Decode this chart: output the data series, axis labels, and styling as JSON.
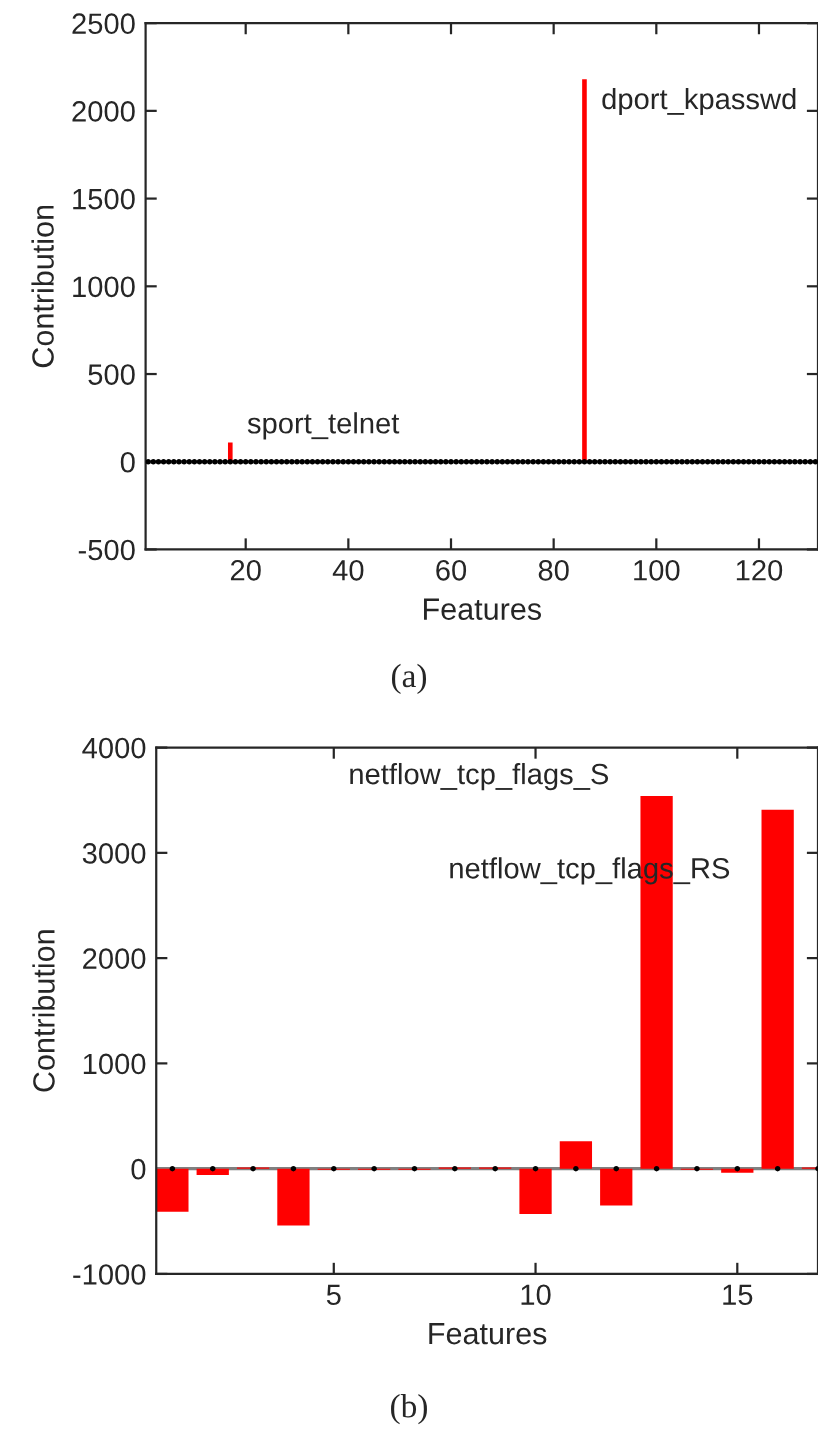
{
  "chart_data": [
    {
      "type": "bar",
      "xlabel": "Features",
      "ylabel": "Contribution",
      "x": [
        1,
        2,
        3,
        4,
        5,
        6,
        7,
        8,
        9,
        10,
        11,
        12,
        13,
        14,
        15,
        16,
        17,
        18,
        19,
        20,
        21,
        22,
        23,
        24,
        25,
        26,
        27,
        28,
        29,
        30,
        31,
        32,
        33,
        34,
        35,
        36,
        37,
        38,
        39,
        40,
        41,
        42,
        43,
        44,
        45,
        46,
        47,
        48,
        49,
        50,
        51,
        52,
        53,
        54,
        55,
        56,
        57,
        58,
        59,
        60,
        61,
        62,
        63,
        64,
        65,
        66,
        67,
        68,
        69,
        70,
        71,
        72,
        73,
        74,
        75,
        76,
        77,
        78,
        79,
        80,
        81,
        82,
        83,
        84,
        85,
        86,
        87,
        88,
        89,
        90,
        91,
        92,
        93,
        94,
        95,
        96,
        97,
        98,
        99,
        100,
        101,
        102,
        103,
        104,
        105,
        106,
        107,
        108,
        109,
        110,
        111,
        112,
        113,
        114,
        115,
        116,
        117,
        118,
        119,
        120,
        121,
        122,
        123,
        124,
        125,
        126,
        127,
        128,
        129,
        130,
        131
      ],
      "series": [
        {
          "color": "#ff0000",
          "values": [
            0,
            0,
            0,
            0,
            0,
            0,
            0,
            0,
            0,
            0,
            0,
            0,
            0,
            0,
            0,
            0,
            110,
            0,
            0,
            0,
            0,
            0,
            0,
            0,
            0,
            0,
            0,
            0,
            0,
            0,
            0,
            0,
            0,
            0,
            0,
            0,
            0,
            0,
            0,
            0,
            0,
            0,
            0,
            0,
            0,
            0,
            0,
            0,
            0,
            0,
            0,
            0,
            0,
            0,
            0,
            0,
            0,
            0,
            0,
            0,
            0,
            0,
            0,
            0,
            0,
            0,
            0,
            0,
            0,
            0,
            0,
            0,
            0,
            0,
            0,
            0,
            0,
            0,
            0,
            0,
            0,
            0,
            0,
            0,
            0,
            2180,
            0,
            0,
            0,
            0,
            0,
            0,
            0,
            0,
            0,
            0,
            0,
            0,
            0,
            0,
            0,
            0,
            0,
            0,
            0,
            0,
            0,
            0,
            0,
            0,
            0,
            0,
            0,
            0,
            0,
            0,
            0,
            0,
            0,
            0,
            0,
            0,
            0,
            0,
            0,
            0,
            0,
            0,
            0,
            0,
            0
          ]
        },
        {
          "type": "scatter",
          "color": "#000000",
          "marker": "circle",
          "values": [
            0,
            0,
            0,
            0,
            0,
            0,
            0,
            0,
            0,
            0,
            0,
            0,
            0,
            0,
            0,
            0,
            0,
            0,
            0,
            0,
            0,
            0,
            0,
            0,
            0,
            0,
            0,
            0,
            0,
            0,
            0,
            0,
            0,
            0,
            0,
            0,
            0,
            0,
            0,
            0,
            0,
            0,
            0,
            0,
            0,
            0,
            0,
            0,
            0,
            0,
            0,
            0,
            0,
            0,
            0,
            0,
            0,
            0,
            0,
            0,
            0,
            0,
            0,
            0,
            0,
            0,
            0,
            0,
            0,
            0,
            0,
            0,
            0,
            0,
            0,
            0,
            0,
            0,
            0,
            0,
            0,
            0,
            0,
            0,
            0,
            0,
            0,
            0,
            0,
            0,
            0,
            0,
            0,
            0,
            0,
            0,
            0,
            0,
            0,
            0,
            0,
            0,
            0,
            0,
            0,
            0,
            0,
            0,
            0,
            0,
            0,
            0,
            0,
            0,
            0,
            0,
            0,
            0,
            0,
            0,
            0,
            0,
            0,
            0,
            0,
            0,
            0,
            0,
            0,
            0,
            0
          ]
        }
      ],
      "xlim": [
        0.5,
        131.5
      ],
      "xticks": [
        20,
        40,
        60,
        80,
        100,
        120
      ],
      "ylim": [
        -500,
        2500
      ],
      "yticks": [
        -500,
        0,
        500,
        1000,
        1500,
        2000,
        2500
      ],
      "ref_lines": [
        {
          "axis": "y",
          "value": 0,
          "color": "#808080"
        }
      ],
      "annotations": [
        {
          "text": "sport_telnet",
          "x": 17,
          "y": 110
        },
        {
          "text": "dport_kpasswd",
          "x": 86,
          "y": 2180
        },
        "(a)"
      ]
    },
    {
      "type": "bar",
      "xlabel": "Features",
      "ylabel": "Contribution",
      "x": [
        1,
        2,
        3,
        4,
        5,
        6,
        7,
        8,
        9,
        10,
        11,
        12,
        13,
        14,
        15,
        16,
        17
      ],
      "series": [
        {
          "color": "#ff0000",
          "values": [
            -410,
            -60,
            10,
            -540,
            -10,
            -10,
            -10,
            10,
            10,
            -430,
            260,
            -350,
            3540,
            -10,
            -40,
            3410,
            10
          ]
        },
        {
          "type": "scatter",
          "color": "#000000",
          "marker": "circle",
          "values": [
            0,
            0,
            0,
            0,
            0,
            0,
            0,
            0,
            0,
            0,
            0,
            0,
            0,
            0,
            0,
            0,
            0
          ]
        }
      ],
      "xlim": [
        0.6,
        17.0
      ],
      "xticks": [
        5,
        10,
        15
      ],
      "ylim": [
        -1000,
        4000
      ],
      "yticks": [
        -1000,
        0,
        1000,
        2000,
        3000,
        4000
      ],
      "ref_lines": [
        {
          "axis": "y",
          "value": 0,
          "color": "#808080"
        }
      ],
      "annotations": [
        {
          "text": "netflow_tcp_flags_S",
          "x": 13,
          "y": 3540
        },
        {
          "text": "netflow_tcp_flags_RS",
          "x": 16,
          "y": 3410
        },
        "(b)"
      ]
    }
  ]
}
